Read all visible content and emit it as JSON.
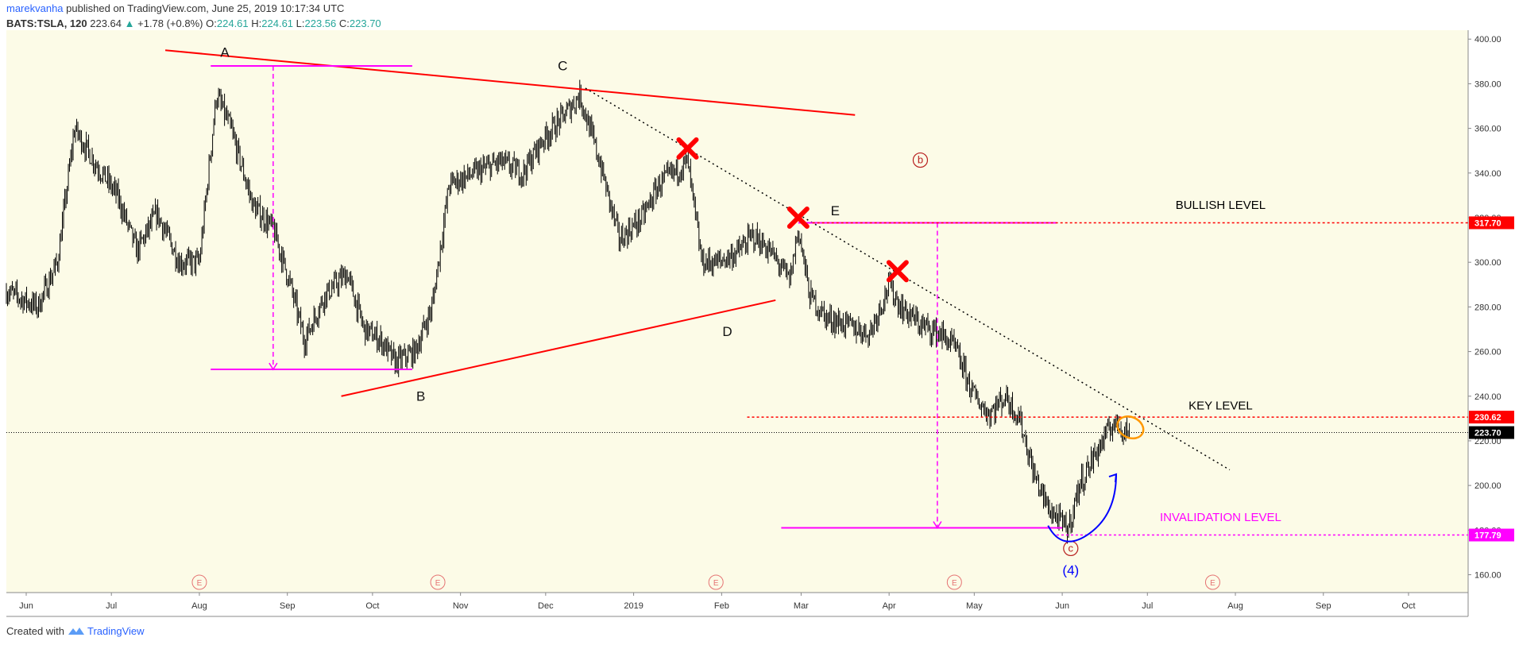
{
  "header": {
    "author": "marekvanha",
    "published": "published on TradingView.com, June 25, 2019 10:17:34 UTC"
  },
  "symbol_line": {
    "symbol": "BATS:TSLA, 120",
    "last": "223.64",
    "change": "+1.78 (+0.8%)",
    "o_label": "O:",
    "o": "224.61",
    "h_label": "H:",
    "h": "224.61",
    "l_label": "L:",
    "l": "223.56",
    "c_label": "C:",
    "c": "223.70"
  },
  "footer": {
    "created_with": "Created with",
    "brand": "TradingView"
  },
  "colors": {
    "background": "#fcfbe7",
    "candle": "#000000",
    "trendline": "#ff0000",
    "magenta": "#ff00ff",
    "blue": "#0000ff",
    "orange": "#ff9800",
    "cross": "#ff0000"
  },
  "chart_data": {
    "type": "line",
    "ylim": [
      152,
      404
    ],
    "y_ticks": [
      "160.00",
      "180.00",
      "200.00",
      "220.00",
      "240.00",
      "260.00",
      "280.00",
      "300.00",
      "320.00",
      "340.00",
      "360.00",
      "380.00",
      "400.00"
    ],
    "y_tick_values": [
      160,
      180,
      200,
      220,
      240,
      260,
      280,
      300,
      320,
      340,
      360,
      380,
      400
    ],
    "x_range": [
      "2018-05-25",
      "2019-10-22"
    ],
    "x_ticks": [
      {
        "label": "Jun",
        "date": "2018-06-01"
      },
      {
        "label": "Jul",
        "date": "2018-07-01"
      },
      {
        "label": "Aug",
        "date": "2018-08-01"
      },
      {
        "label": "Sep",
        "date": "2018-09-01"
      },
      {
        "label": "Oct",
        "date": "2018-10-01"
      },
      {
        "label": "Nov",
        "date": "2018-11-01"
      },
      {
        "label": "Dec",
        "date": "2018-12-01"
      },
      {
        "label": "2019",
        "date": "2019-01-01"
      },
      {
        "label": "Feb",
        "date": "2019-02-01"
      },
      {
        "label": "Mar",
        "date": "2019-03-01"
      },
      {
        "label": "Apr",
        "date": "2019-04-01"
      },
      {
        "label": "May",
        "date": "2019-05-01"
      },
      {
        "label": "Jun",
        "date": "2019-06-01"
      },
      {
        "label": "Jul",
        "date": "2019-07-01"
      },
      {
        "label": "Aug",
        "date": "2019-08-01"
      },
      {
        "label": "Sep",
        "date": "2019-09-01"
      },
      {
        "label": "Oct",
        "date": "2019-10-01"
      }
    ],
    "price_path": [
      [
        "2018-05-25",
        287
      ],
      [
        "2018-06-05",
        280
      ],
      [
        "2018-06-12",
        300
      ],
      [
        "2018-06-18",
        360
      ],
      [
        "2018-06-25",
        345
      ],
      [
        "2018-07-03",
        330
      ],
      [
        "2018-07-10",
        305
      ],
      [
        "2018-07-17",
        322
      ],
      [
        "2018-07-25",
        300
      ],
      [
        "2018-08-01",
        300
      ],
      [
        "2018-08-07",
        375
      ],
      [
        "2018-08-12",
        360
      ],
      [
        "2018-08-20",
        325
      ],
      [
        "2018-08-27",
        315
      ],
      [
        "2018-09-02",
        290
      ],
      [
        "2018-09-07",
        265
      ],
      [
        "2018-09-14",
        285
      ],
      [
        "2018-09-22",
        295
      ],
      [
        "2018-09-28",
        270
      ],
      [
        "2018-10-04",
        265
      ],
      [
        "2018-10-09",
        255
      ],
      [
        "2018-10-16",
        260
      ],
      [
        "2018-10-22",
        280
      ],
      [
        "2018-10-28",
        335
      ],
      [
        "2018-11-06",
        340
      ],
      [
        "2018-11-15",
        345
      ],
      [
        "2018-11-23",
        340
      ],
      [
        "2018-11-30",
        355
      ],
      [
        "2018-12-07",
        365
      ],
      [
        "2018-12-13",
        375
      ],
      [
        "2018-12-20",
        345
      ],
      [
        "2018-12-27",
        310
      ],
      [
        "2019-01-04",
        320
      ],
      [
        "2019-01-10",
        335
      ],
      [
        "2019-01-15",
        340
      ],
      [
        "2019-01-20",
        345
      ],
      [
        "2019-01-25",
        300
      ],
      [
        "2019-01-31",
        300
      ],
      [
        "2019-02-07",
        305
      ],
      [
        "2019-02-12",
        312
      ],
      [
        "2019-02-18",
        305
      ],
      [
        "2019-02-25",
        292
      ],
      [
        "2019-02-28",
        315
      ],
      [
        "2019-03-04",
        285
      ],
      [
        "2019-03-10",
        275
      ],
      [
        "2019-03-17",
        272
      ],
      [
        "2019-03-25",
        268
      ],
      [
        "2019-04-01",
        290
      ],
      [
        "2019-04-05",
        280
      ],
      [
        "2019-04-12",
        272
      ],
      [
        "2019-04-19",
        268
      ],
      [
        "2019-04-24",
        262
      ],
      [
        "2019-05-01",
        240
      ],
      [
        "2019-05-06",
        232
      ],
      [
        "2019-05-12",
        240
      ],
      [
        "2019-05-17",
        230
      ],
      [
        "2019-05-22",
        205
      ],
      [
        "2019-05-27",
        190
      ],
      [
        "2019-06-03",
        180
      ],
      [
        "2019-06-07",
        200
      ],
      [
        "2019-06-13",
        215
      ],
      [
        "2019-06-19",
        228
      ],
      [
        "2019-06-25",
        224
      ]
    ],
    "current_price": 223.7,
    "price_badges": [
      {
        "label": "317.70",
        "value": 317.7,
        "color": "#ff0000",
        "dashed": true
      },
      {
        "label": "230.62",
        "value": 230.62,
        "color": "#ff0000",
        "dashed": true
      },
      {
        "label": "223.70",
        "value": 223.7,
        "color": "#000000",
        "dashed": false
      },
      {
        "label": "177.79",
        "value": 177.79,
        "color": "#ff00ff",
        "dashed": true
      }
    ],
    "trendlines": [
      {
        "from": [
          "2018-07-20",
          395
        ],
        "to": [
          "2019-03-20",
          366
        ],
        "color": "#ff0000"
      },
      {
        "from": [
          "2018-09-20",
          240
        ],
        "to": [
          "2019-02-20",
          283
        ],
        "color": "#ff0000"
      },
      {
        "from": [
          "2018-12-15",
          378
        ],
        "to": [
          "2019-07-30",
          207
        ],
        "color": "#000000",
        "dotted": true
      }
    ],
    "magenta_levels": [
      {
        "from": "2018-08-05",
        "to": "2018-10-15",
        "value": 388
      },
      {
        "from": "2018-08-05",
        "to": "2018-10-15",
        "value": 252
      },
      {
        "from": "2019-02-28",
        "to": "2019-05-30",
        "value": 317.7
      },
      {
        "from": "2019-02-22",
        "to": "2019-06-01",
        "value": 181
      }
    ],
    "measure_arrows": [
      {
        "date": "2018-08-27",
        "from": 388,
        "to": 252
      },
      {
        "date": "2019-04-18",
        "from": 317.7,
        "to": 181
      }
    ],
    "wave_labels": [
      {
        "label": "A",
        "date": "2018-08-10",
        "value": 392,
        "style": "plain"
      },
      {
        "label": "B",
        "date": "2018-10-18",
        "value": 238,
        "style": "plain"
      },
      {
        "label": "C",
        "date": "2018-12-07",
        "value": 386,
        "style": "plain"
      },
      {
        "label": "D",
        "date": "2019-02-03",
        "value": 267,
        "style": "plain"
      },
      {
        "label": "E",
        "date": "2019-03-13",
        "value": 321,
        "style": "plain"
      },
      {
        "label": "b",
        "date": "2019-04-12",
        "value": 344,
        "style": "circled"
      },
      {
        "label": "c",
        "date": "2019-06-04",
        "value": 170,
        "style": "circled"
      },
      {
        "label": "(4)",
        "date": "2019-06-04",
        "value": 160,
        "style": "blue"
      }
    ],
    "events": [
      {
        "label": "E",
        "date": "2018-08-01"
      },
      {
        "label": "E",
        "date": "2018-10-24"
      },
      {
        "label": "E",
        "date": "2019-01-30"
      },
      {
        "label": "E",
        "date": "2019-04-24"
      },
      {
        "label": "E",
        "date": "2019-07-24"
      }
    ],
    "crosses": [
      {
        "date": "2019-01-20",
        "value": 351
      },
      {
        "date": "2019-02-28",
        "value": 320
      },
      {
        "date": "2019-04-04",
        "value": 296
      }
    ],
    "annotations": [
      {
        "text": "BULLISH LEVEL",
        "date": "2019-07-10",
        "value": 324,
        "color": "#000000"
      },
      {
        "text": "KEY LEVEL",
        "date": "2019-07-10",
        "value": 234,
        "color": "#000000"
      },
      {
        "text": "INVALIDATION LEVEL",
        "date": "2019-07-10",
        "value": 184,
        "color": "#ff00ff"
      }
    ],
    "key_ellipse": {
      "date": "2019-06-25",
      "value": 226
    },
    "projection_arc": {
      "from": [
        "2019-05-27",
        182
      ],
      "bottom": [
        "2019-06-01",
        177
      ],
      "to": [
        "2019-06-20",
        205
      ]
    }
  }
}
